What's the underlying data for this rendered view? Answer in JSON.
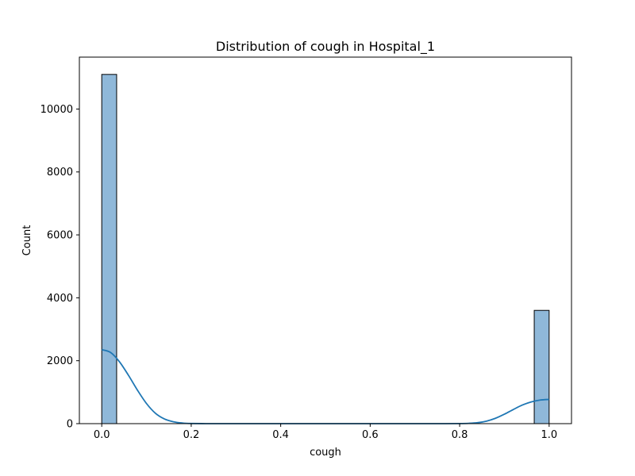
{
  "chart_data": {
    "type": "bar",
    "title": "Distribution of cough in Hospital_1",
    "xlabel": "cough",
    "ylabel": "Count",
    "xlim": [
      -0.05,
      1.05
    ],
    "ylim": [
      0,
      11650
    ],
    "xticks": [
      0.0,
      0.2,
      0.4,
      0.6,
      0.8,
      1.0
    ],
    "xtick_labels": [
      "0.0",
      "0.2",
      "0.4",
      "0.6",
      "0.8",
      "1.0"
    ],
    "yticks": [
      0,
      2000,
      4000,
      6000,
      8000,
      10000
    ],
    "ytick_labels": [
      "0",
      "2000",
      "4000",
      "6000",
      "8000",
      "10000"
    ],
    "bars": [
      {
        "x0": 0.0,
        "x1": 0.0333,
        "value": 11100
      },
      {
        "x0": 0.9667,
        "x1": 1.0,
        "value": 3600
      }
    ],
    "kde": {
      "x": [
        0.0,
        0.02,
        0.04,
        0.06,
        0.08,
        0.1,
        0.12,
        0.14,
        0.16,
        0.18,
        0.2,
        0.25,
        0.3,
        0.4,
        0.5,
        0.6,
        0.7,
        0.75,
        0.8,
        0.82,
        0.84,
        0.86,
        0.88,
        0.9,
        0.92,
        0.94,
        0.96,
        0.98,
        1.0
      ],
      "y": [
        2350,
        2260,
        1960,
        1530,
        1060,
        640,
        330,
        150,
        60,
        20,
        5,
        0,
        0,
        0,
        0,
        0,
        0,
        0,
        3,
        10,
        30,
        80,
        170,
        300,
        450,
        590,
        690,
        750,
        770
      ]
    },
    "grid": false,
    "colors": {
      "bar_fill": "#8fb8d9",
      "bar_edge": "#000000",
      "kde_line": "#1f77b4"
    }
  }
}
